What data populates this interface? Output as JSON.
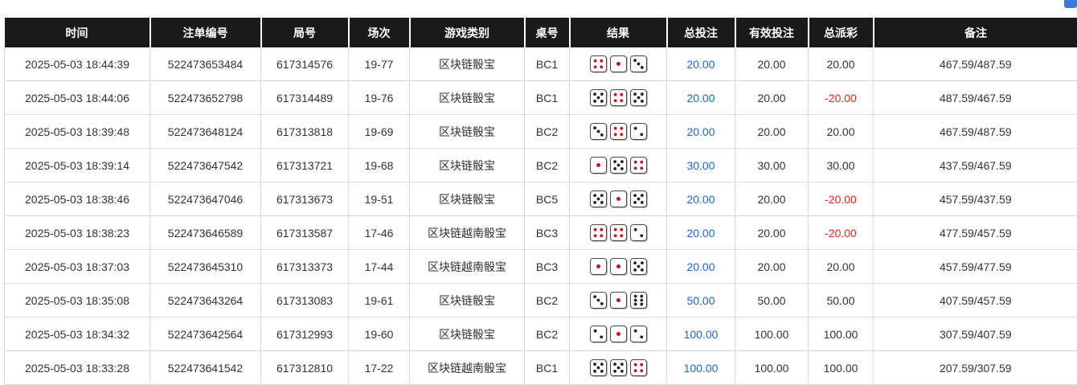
{
  "header": {
    "columns": [
      "时间",
      "注单编号",
      "局号",
      "场次",
      "游戏类别",
      "桌号",
      "结果",
      "总投注",
      "有效投注",
      "总派彩",
      "备注"
    ]
  },
  "colors": {
    "accent_blue": "#1e66c9",
    "negative_red": "#e02424",
    "header_bg": "#1a1a1a",
    "die_pip_red": "#c0141c",
    "die_pip_black": "#222222"
  },
  "rows": [
    {
      "time": "2025-05-03 18:44:39",
      "bet_id": "522473653484",
      "round_id": "617314576",
      "session": "19-77",
      "game": "区块链骰宝",
      "table": "BC1",
      "dice": [
        4,
        1,
        3
      ],
      "total_bet": "20.00",
      "valid_bet": "20.00",
      "payout": "20.00",
      "payout_negative": false,
      "note": "467.59/487.59"
    },
    {
      "time": "2025-05-03 18:44:06",
      "bet_id": "522473652798",
      "round_id": "617314489",
      "session": "19-76",
      "game": "区块链骰宝",
      "table": "BC1",
      "dice": [
        5,
        4,
        5
      ],
      "total_bet": "20.00",
      "valid_bet": "20.00",
      "payout": "-20.00",
      "payout_negative": true,
      "note": "487.59/467.59"
    },
    {
      "time": "2025-05-03 18:39:48",
      "bet_id": "522473648124",
      "round_id": "617313818",
      "session": "19-69",
      "game": "区块链骰宝",
      "table": "BC2",
      "dice": [
        3,
        4,
        2
      ],
      "total_bet": "20.00",
      "valid_bet": "20.00",
      "payout": "20.00",
      "payout_negative": false,
      "note": "467.59/487.59"
    },
    {
      "time": "2025-05-03 18:39:14",
      "bet_id": "522473647542",
      "round_id": "617313721",
      "session": "19-68",
      "game": "区块链骰宝",
      "table": "BC2",
      "dice": [
        1,
        5,
        4
      ],
      "total_bet": "30.00",
      "valid_bet": "30.00",
      "payout": "30.00",
      "payout_negative": false,
      "note": "437.59/467.59"
    },
    {
      "time": "2025-05-03 18:38:46",
      "bet_id": "522473647046",
      "round_id": "617313673",
      "session": "19-51",
      "game": "区块链骰宝",
      "table": "BC5",
      "dice": [
        5,
        1,
        5
      ],
      "total_bet": "20.00",
      "valid_bet": "20.00",
      "payout": "-20.00",
      "payout_negative": true,
      "note": "457.59/437.59"
    },
    {
      "time": "2025-05-03 18:38:23",
      "bet_id": "522473646589",
      "round_id": "617313587",
      "session": "17-46",
      "game": "区块链越南骰宝",
      "table": "BC3",
      "dice": [
        4,
        4,
        2
      ],
      "total_bet": "20.00",
      "valid_bet": "20.00",
      "payout": "-20.00",
      "payout_negative": true,
      "note": "477.59/457.59"
    },
    {
      "time": "2025-05-03 18:37:03",
      "bet_id": "522473645310",
      "round_id": "617313373",
      "session": "17-44",
      "game": "区块链越南骰宝",
      "table": "BC3",
      "dice": [
        1,
        1,
        5
      ],
      "total_bet": "20.00",
      "valid_bet": "20.00",
      "payout": "20.00",
      "payout_negative": false,
      "note": "457.59/477.59"
    },
    {
      "time": "2025-05-03 18:35:08",
      "bet_id": "522473643264",
      "round_id": "617313083",
      "session": "19-61",
      "game": "区块链骰宝",
      "table": "BC2",
      "dice": [
        3,
        1,
        6
      ],
      "total_bet": "50.00",
      "valid_bet": "50.00",
      "payout": "50.00",
      "payout_negative": false,
      "note": "407.59/457.59"
    },
    {
      "time": "2025-05-03 18:34:32",
      "bet_id": "522473642564",
      "round_id": "617312993",
      "session": "19-60",
      "game": "区块链骰宝",
      "table": "BC2",
      "dice": [
        2,
        1,
        2
      ],
      "total_bet": "100.00",
      "valid_bet": "100.00",
      "payout": "100.00",
      "payout_negative": false,
      "note": "307.59/407.59"
    },
    {
      "time": "2025-05-03 18:33:28",
      "bet_id": "522473641542",
      "round_id": "617312810",
      "session": "17-22",
      "game": "区块链越南骰宝",
      "table": "BC1",
      "dice": [
        5,
        5,
        4
      ],
      "total_bet": "100.00",
      "valid_bet": "100.00",
      "payout": "100.00",
      "payout_negative": false,
      "note": "207.59/307.59"
    }
  ]
}
